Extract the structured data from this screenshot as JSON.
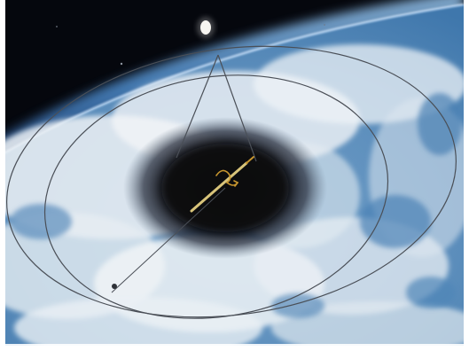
{
  "image": {
    "subject": "earth-from-orbit-with-shadow-and-orbit-overlay",
    "colors": {
      "space": "#05070d",
      "atmosphere_edge": "#7fb4e6",
      "ocean": "#4f86b8",
      "cloud": "#e9eef3",
      "shadow": "#0b0c12",
      "orbit_line": "#4a4f57",
      "needle": "#d8c47a",
      "arrow": "#c7962f"
    }
  }
}
